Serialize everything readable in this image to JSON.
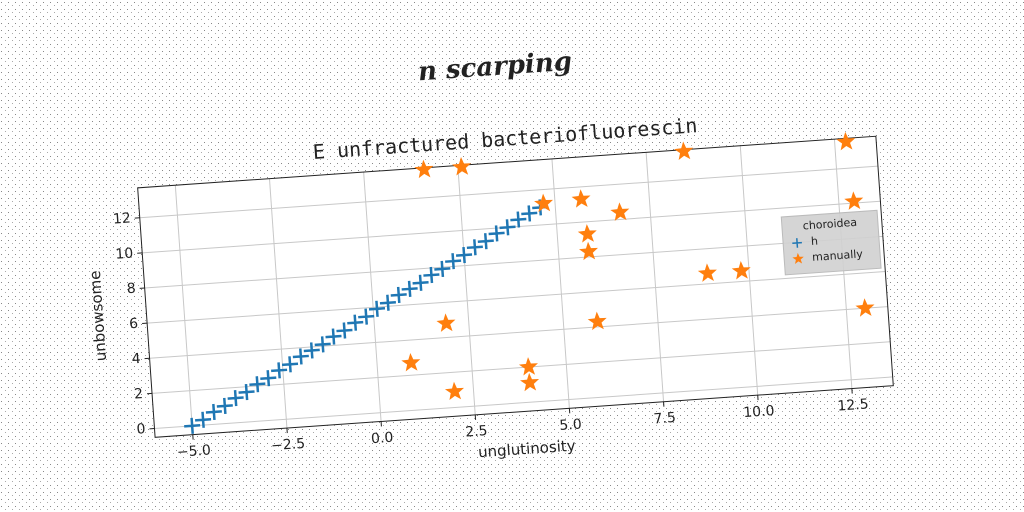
{
  "chart_data": {
    "type": "scatter",
    "suptitle": "n scarping",
    "title": "E unfractured bacteriofluorescin",
    "xlabel": "unglutinosity",
    "ylabel": "unbowsome",
    "legend_title": "choroidea",
    "legend_loc": "right",
    "grid": true,
    "xlim": [
      -6.0,
      13.6
    ],
    "ylim": [
      -0.5,
      13.7
    ],
    "xticks": [
      {
        "value": -5,
        "label": "−5.0"
      },
      {
        "value": -2.5,
        "label": "−2.5"
      },
      {
        "value": 0,
        "label": "0.0"
      },
      {
        "value": 2.5,
        "label": "2.5"
      },
      {
        "value": 5,
        "label": "5.0"
      },
      {
        "value": 7.5,
        "label": "7.5"
      },
      {
        "value": 10,
        "label": "10.0"
      },
      {
        "value": 12.5,
        "label": "12.5"
      }
    ],
    "yticks": [
      0,
      2,
      4,
      6,
      8,
      10,
      12
    ],
    "series": [
      {
        "name": "h",
        "color": "#1f77b4",
        "marker": "plus",
        "x": [
          -5.0,
          -4.7,
          -4.4,
          -4.1,
          -3.8,
          -3.5,
          -3.2,
          -2.9,
          -2.6,
          -2.3,
          -2.0,
          -1.7,
          -1.4,
          -1.1,
          -0.8,
          -0.5,
          -0.2,
          0.1,
          0.4,
          0.7,
          1.0,
          1.3,
          1.6,
          1.9,
          2.2,
          2.5,
          2.8,
          3.1,
          3.4,
          3.7,
          4.0,
          4.3,
          4.6
        ],
        "values": [
          0,
          0.3,
          0.7,
          1.0,
          1.4,
          1.7,
          2.1,
          2.4,
          2.8,
          3.1,
          3.5,
          3.8,
          4.1,
          4.5,
          4.8,
          5.2,
          5.5,
          5.9,
          6.2,
          6.6,
          6.9,
          7.2,
          7.6,
          7.9,
          8.3,
          8.6,
          9.0,
          9.3,
          9.7,
          10.0,
          10.4,
          10.7,
          11.0
        ]
      },
      {
        "name": "manually",
        "color": "#ff7f0e",
        "marker": "star",
        "x": [
          1.6,
          2.6,
          8.5,
          12.8,
          4.7,
          5.7,
          6.7,
          12.9,
          5.8,
          5.8,
          8.9,
          9.8,
          5.9,
          13.0,
          1.9,
          0.9,
          4.0,
          4.0,
          2.0
        ],
        "values": [
          13.6,
          13.6,
          13.6,
          13.5,
          11.2,
          11.3,
          10.4,
          10.1,
          9.3,
          8.3,
          6.6,
          6.6,
          4.3,
          4.0,
          4.8,
          2.7,
          2.0,
          1.1,
          0.9
        ]
      }
    ]
  }
}
